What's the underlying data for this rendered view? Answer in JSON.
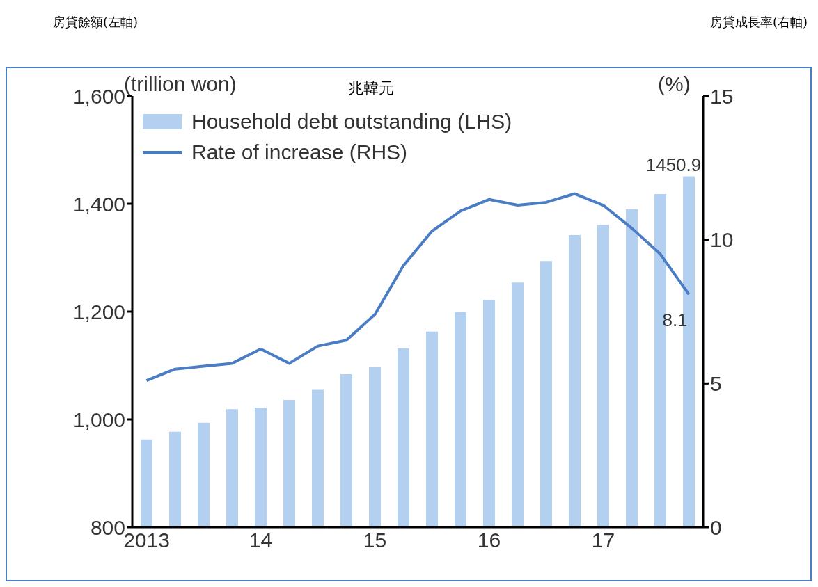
{
  "chart_data": {
    "type": "bar",
    "annotations": [
      "房貸餘額(左軸)",
      "房貸成長率(右軸)",
      "兆韓元"
    ],
    "ylabel": "(trillion won)",
    "y2label": "(%)",
    "categories": [
      "2013",
      null,
      null,
      null,
      "14",
      null,
      null,
      null,
      "15",
      null,
      null,
      null,
      "16",
      null,
      null,
      null,
      "17",
      null,
      null,
      null
    ],
    "series": [
      {
        "name": "Household debt outstanding (LHS)",
        "color": "#b4d0f0",
        "values": [
          963,
          977,
          994,
          1019,
          1022,
          1036,
          1055,
          1084,
          1097,
          1132,
          1163,
          1199,
          1222,
          1254,
          1294,
          1342,
          1361,
          1390,
          1418,
          1450.9
        ],
        "value_labels": [
          null,
          null,
          null,
          null,
          null,
          null,
          null,
          null,
          null,
          null,
          null,
          null,
          null,
          null,
          null,
          null,
          null,
          null,
          null,
          "1450.9"
        ]
      },
      {
        "name": "Rate of increase (RHS)",
        "type": "line",
        "axis": "y2",
        "color": "#4a7dc4",
        "values": [
          5.1,
          5.5,
          5.6,
          5.7,
          6.2,
          5.7,
          6.3,
          6.5,
          7.4,
          9.1,
          10.3,
          11.0,
          11.4,
          11.2,
          11.3,
          11.6,
          11.2,
          10.4,
          9.5,
          8.1
        ],
        "value_labels": [
          null,
          null,
          null,
          null,
          null,
          null,
          null,
          null,
          null,
          null,
          null,
          null,
          null,
          null,
          null,
          null,
          null,
          null,
          null,
          "8.1"
        ]
      }
    ],
    "ylim": [
      800,
      1600
    ],
    "yticks": [
      {
        "value": 800,
        "label": "800"
      },
      {
        "value": 1000,
        "label": "1,000"
      },
      {
        "value": 1200,
        "label": "1,200"
      },
      {
        "value": 1400,
        "label": "1,400"
      },
      {
        "value": 1600,
        "label": "1,600"
      }
    ],
    "y2lim": [
      0,
      15
    ],
    "y2ticks": [
      0,
      5,
      10,
      15
    ],
    "legend": "top left"
  }
}
